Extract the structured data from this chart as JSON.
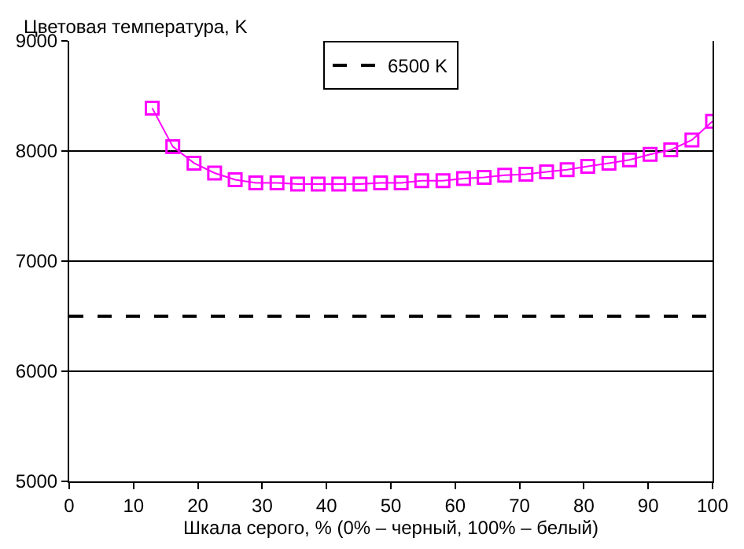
{
  "chart_data": {
    "type": "line",
    "ylabel": "Цветовая температура, K",
    "xlabel": "Шкала серого, % (0% – черный, 100% – белый)",
    "x": [
      12.9,
      16.1,
      19.4,
      22.6,
      25.8,
      29.0,
      32.3,
      35.5,
      38.7,
      41.9,
      45.2,
      48.4,
      51.6,
      54.8,
      58.1,
      61.3,
      64.5,
      67.7,
      71.0,
      74.2,
      77.4,
      80.6,
      83.9,
      87.1,
      90.3,
      93.5,
      96.8,
      100
    ],
    "series": [
      {
        "color": "#ff00ff",
        "values": [
          8390,
          8040,
          7890,
          7800,
          7740,
          7710,
          7710,
          7700,
          7700,
          7700,
          7700,
          7710,
          7710,
          7730,
          7730,
          7750,
          7760,
          7780,
          7790,
          7810,
          7830,
          7860,
          7890,
          7920,
          7970,
          8010,
          8100,
          8270
        ]
      }
    ],
    "ref_lines": [
      {
        "axis": "y",
        "value": 6500,
        "label": "6500 K",
        "color": "#000000",
        "line_style": "dashed"
      }
    ],
    "xlim": [
      0,
      100
    ],
    "xticks": [
      0,
      10,
      20,
      30,
      40,
      50,
      60,
      70,
      80,
      90,
      100
    ],
    "ylim": [
      5000,
      9000
    ],
    "yticks": [
      5000,
      6000,
      7000,
      8000,
      9000
    ],
    "grid": "y",
    "legend": "top",
    "marker": "square",
    "line_style": "solid"
  }
}
